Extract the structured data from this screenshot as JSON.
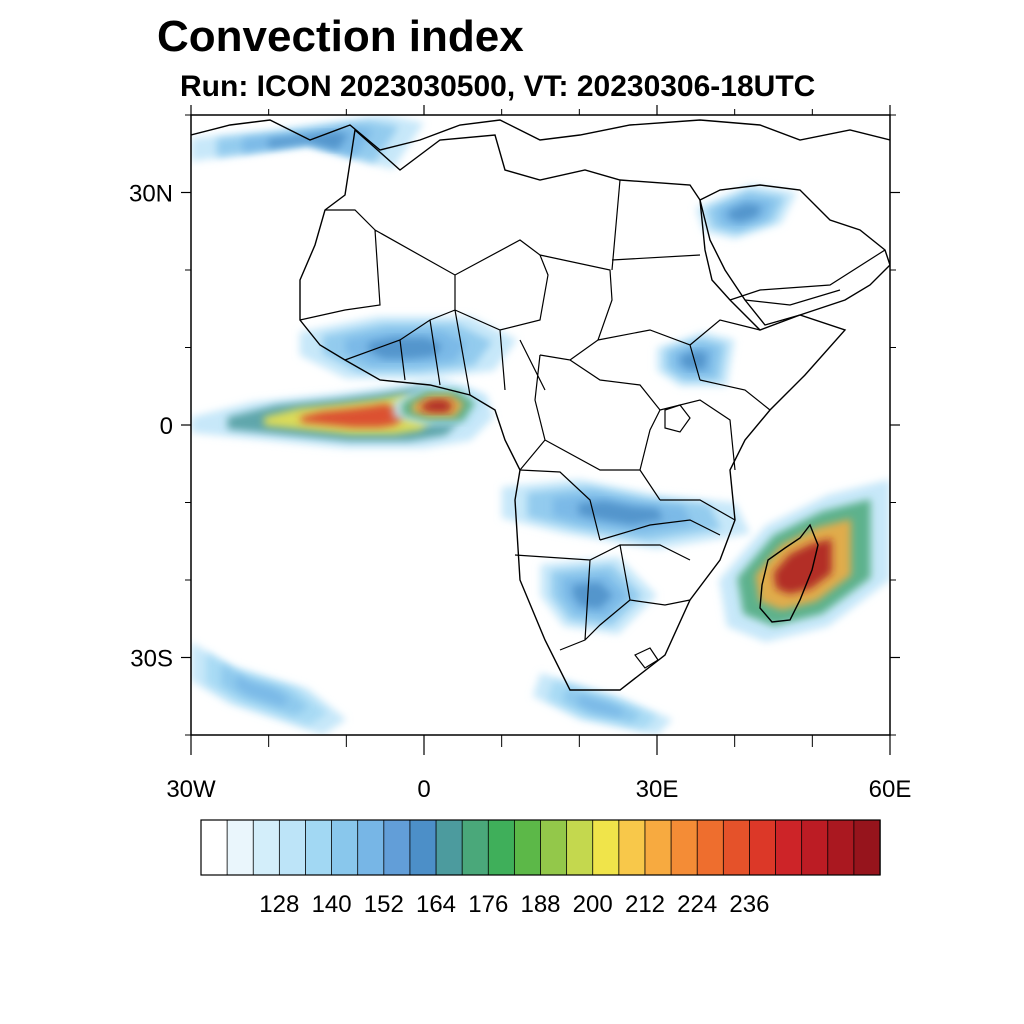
{
  "title": "Convection index",
  "subtitle": "Run: ICON 2023030500,  VT: 20230306-18UTC",
  "map": {
    "region": {
      "lon_range": [
        -30,
        60
      ],
      "lat_range": [
        -40,
        40
      ]
    },
    "lat_ticks": [
      {
        "lat": 30,
        "label": "30N"
      },
      {
        "lat": 0,
        "label": "0"
      },
      {
        "lat": -30,
        "label": "30S"
      }
    ],
    "lon_ticks": [
      {
        "lon": -30,
        "label": "30W"
      },
      {
        "lon": 0,
        "label": "0"
      },
      {
        "lon": 30,
        "label": "30E"
      },
      {
        "lon": 60,
        "label": "60E"
      }
    ],
    "minor_step_deg": 10
  },
  "colorbar": {
    "colors": [
      "#ffffff",
      "#eaf6fc",
      "#d3eefa",
      "#bde4f8",
      "#a2d8f3",
      "#89c7ec",
      "#77b6e6",
      "#629ed8",
      "#4c8fc8",
      "#4c9b9e",
      "#4aa87a",
      "#3faf5a",
      "#5cb848",
      "#93c84a",
      "#c4d84e",
      "#f0e44a",
      "#f8c84a",
      "#f7aa40",
      "#f48c36",
      "#ee6e2e",
      "#e5522a",
      "#dc3828",
      "#cd2428",
      "#bc1c24",
      "#aa1820",
      "#96141c"
    ],
    "tick_labels": [
      "128",
      "140",
      "152",
      "164",
      "176",
      "188",
      "200",
      "212",
      "224",
      "236"
    ]
  },
  "fields": [
    {
      "name": "equatorial-atlantic-band",
      "level": 0.85,
      "pts": [
        [
          -30,
          1
        ],
        [
          -22,
          3
        ],
        [
          -12,
          4
        ],
        [
          -4,
          5
        ],
        [
          2,
          6
        ],
        [
          8,
          4
        ],
        [
          9,
          1
        ],
        [
          6,
          -2
        ],
        [
          0,
          -3
        ],
        [
          -10,
          -3
        ],
        [
          -20,
          -2
        ],
        [
          -30,
          -1
        ]
      ]
    },
    {
      "name": "gulf-of-guinea-core",
      "level": 0.95,
      "pts": [
        [
          -4,
          3
        ],
        [
          0,
          5
        ],
        [
          5,
          5
        ],
        [
          8,
          3
        ],
        [
          6,
          0
        ],
        [
          0,
          0
        ],
        [
          -4,
          1
        ]
      ]
    },
    {
      "name": "west-africa-sahel",
      "level": 0.3,
      "pts": [
        [
          -16,
          12
        ],
        [
          -6,
          14
        ],
        [
          6,
          14
        ],
        [
          12,
          11
        ],
        [
          9,
          7
        ],
        [
          0,
          6
        ],
        [
          -10,
          6
        ],
        [
          -16,
          9
        ]
      ]
    },
    {
      "name": "mozambique-channel-east",
      "level": 0.95,
      "pts": [
        [
          38,
          -20
        ],
        [
          44,
          -13
        ],
        [
          52,
          -9
        ],
        [
          60,
          -7
        ],
        [
          60,
          -20
        ],
        [
          52,
          -26
        ],
        [
          44,
          -28
        ],
        [
          39,
          -26
        ]
      ]
    },
    {
      "name": "southern-africa-band",
      "level": 0.3,
      "pts": [
        [
          10,
          -8
        ],
        [
          20,
          -7
        ],
        [
          30,
          -9
        ],
        [
          40,
          -10
        ],
        [
          42,
          -14
        ],
        [
          30,
          -16
        ],
        [
          18,
          -14
        ],
        [
          10,
          -12
        ]
      ]
    },
    {
      "name": "south-africa-interior",
      "level": 0.3,
      "pts": [
        [
          15,
          -18
        ],
        [
          25,
          -17
        ],
        [
          30,
          -22
        ],
        [
          25,
          -27
        ],
        [
          18,
          -26
        ],
        [
          15,
          -22
        ]
      ]
    },
    {
      "name": "southwest-atlantic-streak",
      "level": 0.25,
      "pts": [
        [
          -30,
          -28
        ],
        [
          -25,
          -31
        ],
        [
          -15,
          -34
        ],
        [
          -10,
          -38
        ],
        [
          -13,
          -40
        ],
        [
          -25,
          -36
        ],
        [
          -30,
          -33
        ]
      ]
    },
    {
      "name": "mediterranean-north",
      "level": 0.3,
      "pts": [
        [
          -30,
          37
        ],
        [
          -20,
          38
        ],
        [
          -5,
          40
        ],
        [
          0,
          39
        ],
        [
          -4,
          33
        ],
        [
          -15,
          36
        ],
        [
          -30,
          34
        ]
      ]
    },
    {
      "name": "central-africa-east",
      "level": 0.3,
      "pts": [
        [
          30,
          10
        ],
        [
          36,
          12
        ],
        [
          40,
          11
        ],
        [
          39,
          5
        ],
        [
          33,
          5
        ],
        [
          30,
          7
        ]
      ]
    },
    {
      "name": "arabia-west",
      "level": 0.3,
      "pts": [
        [
          35,
          28
        ],
        [
          42,
          31
        ],
        [
          48,
          30
        ],
        [
          46,
          26
        ],
        [
          40,
          24
        ],
        [
          36,
          25
        ]
      ]
    },
    {
      "name": "south-cape-streak",
      "level": 0.25,
      "pts": [
        [
          15,
          -32
        ],
        [
          25,
          -35
        ],
        [
          32,
          -38
        ],
        [
          30,
          -40
        ],
        [
          20,
          -38
        ],
        [
          14,
          -35
        ]
      ]
    }
  ]
}
